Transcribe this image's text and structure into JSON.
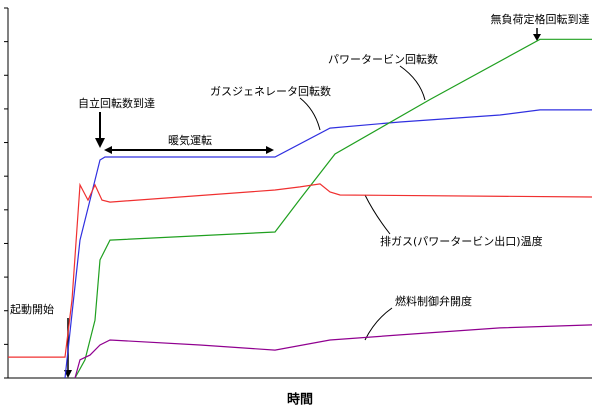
{
  "chart_data": {
    "type": "line",
    "xlabel": "時間",
    "xlim": [
      0,
      100
    ],
    "ylim": [
      0,
      110
    ],
    "yticks": [
      0,
      10,
      20,
      30,
      40,
      50,
      60,
      70,
      80,
      90,
      100,
      110
    ],
    "annotations": [
      "起動開始",
      "自立回転数到達",
      "暖気運転",
      "無負荷定格回転到達"
    ],
    "series": [
      {
        "name": "ガスジェネレータ回転数",
        "color": "#3030e0",
        "x": [
          9.76,
          12.33,
          14.04,
          15.75,
          16.61,
          45.72,
          55.14,
          67.12,
          84.25,
          91.1,
          100
        ],
        "values": [
          0,
          41.0,
          52.9,
          64.8,
          65.7,
          65.7,
          74.3,
          76.1,
          78.2,
          79.7,
          79.7
        ]
      },
      {
        "name": "パワータービン回転数",
        "color": "#20a020",
        "x": [
          11.47,
          13.18,
          14.9,
          15.75,
          17.47,
          45.72,
          50.0,
          55.99,
          72.26,
          91.1,
          100
        ],
        "values": [
          0,
          5.4,
          17.2,
          35.1,
          41.0,
          43.4,
          53.2,
          66.6,
          82.8,
          100.7,
          100.7
        ]
      },
      {
        "name": "排ガス(パワータービン出口)温度",
        "color": "#f03030",
        "x": [
          0,
          9.76,
          10.96,
          12.33,
          13.7,
          14.9,
          16.1,
          17.47,
          45.72,
          50.0,
          53.42,
          55.14,
          56.85,
          100
        ],
        "values": [
          6.2,
          6.2,
          23.2,
          57.4,
          52.9,
          57.4,
          52.9,
          52.3,
          55.9,
          56.8,
          57.7,
          55.3,
          54.4,
          53.8
        ]
      },
      {
        "name": "燃料制御弁開度",
        "color": "#900090",
        "x": [
          11.47,
          12.33,
          14.04,
          15.75,
          17.47,
          32.88,
          45.72,
          55.14,
          67.12,
          84.25,
          100
        ],
        "values": [
          0,
          5.4,
          6.8,
          9.8,
          11.3,
          9.8,
          8.3,
          11.3,
          12.8,
          14.9,
          15.8
        ]
      }
    ]
  }
}
